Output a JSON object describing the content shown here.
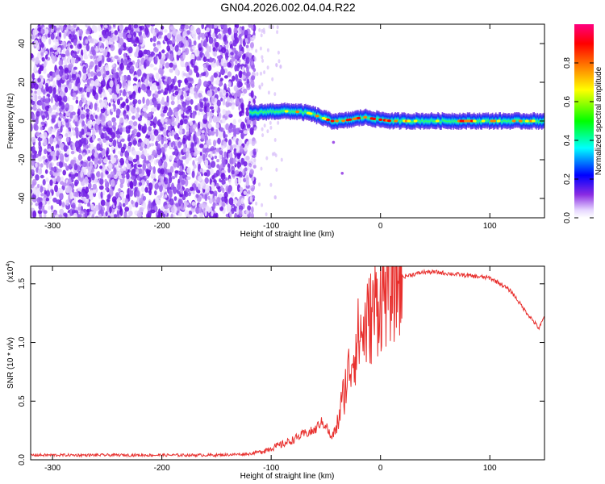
{
  "title": "GN04.2026.002.04.04.R22",
  "chart_data": [
    {
      "type": "heatmap",
      "title": "GN04.2026.002.04.04.R22",
      "xlabel": "Height of straight line (km)",
      "ylabel": "Frequency (Hz)",
      "xlim": [
        -320,
        150
      ],
      "ylim": [
        -50,
        50
      ],
      "xticks": [
        -300,
        -200,
        -100,
        0,
        100
      ],
      "yticks": [
        -40,
        -20,
        0,
        20,
        40
      ],
      "xtick_labels": [
        "-300",
        "-200",
        "-100",
        "0",
        "100"
      ],
      "ytick_labels": [
        "-40",
        "-20",
        "0",
        "20",
        "40"
      ],
      "colorbar": {
        "label": "Normalized spectral amplitude",
        "range": [
          0,
          1
        ],
        "ticks": [
          0.0,
          0.2,
          0.4,
          0.6,
          0.8
        ],
        "tick_labels": [
          "0.0",
          "0.2",
          "0.4",
          "0.6",
          "0.8"
        ],
        "colors": [
          "#ffffff",
          "#8a2be2",
          "#0000ff",
          "#00ffff",
          "#00ff00",
          "#ffff00",
          "#ff8000",
          "#ff0000",
          "#ff0080"
        ]
      },
      "noise_region": {
        "x_range": [
          -320,
          -115
        ],
        "freq_range": [
          -50,
          50
        ]
      },
      "ridge": {
        "description_points": [
          {
            "x": -120,
            "freq": 4,
            "amp": 0.5
          },
          {
            "x": -100,
            "freq": 5,
            "amp": 0.5
          },
          {
            "x": -80,
            "freq": 5,
            "amp": 0.55
          },
          {
            "x": -65,
            "freq": 4,
            "amp": 0.6
          },
          {
            "x": -55,
            "freq": 2,
            "amp": 0.7
          },
          {
            "x": -45,
            "freq": 0,
            "amp": 0.9
          },
          {
            "x": -35,
            "freq": 0,
            "amp": 0.8
          },
          {
            "x": -25,
            "freq": 1,
            "amp": 0.85
          },
          {
            "x": -15,
            "freq": 2,
            "amp": 0.9
          },
          {
            "x": -5,
            "freq": 1,
            "amp": 0.85
          },
          {
            "x": 10,
            "freq": 0,
            "amp": 0.8
          },
          {
            "x": 40,
            "freq": 0,
            "amp": 0.55
          },
          {
            "x": 80,
            "freq": 0,
            "amp": 0.85
          },
          {
            "x": 110,
            "freq": 0,
            "amp": 0.6
          },
          {
            "x": 150,
            "freq": 0,
            "amp": 0.6
          }
        ]
      }
    },
    {
      "type": "line",
      "xlabel": "Height of straight line (km)",
      "ylabel": "SNR (10 * v/v)",
      "y_multiplier_label": "(x10",
      "y_multiplier_exp": "4",
      "y_multiplier_close": ")",
      "xlim": [
        -320,
        150
      ],
      "ylim": [
        0,
        1.65
      ],
      "xticks": [
        -300,
        -200,
        -100,
        0,
        100
      ],
      "yticks": [
        0.0,
        0.5,
        1.0,
        1.5
      ],
      "xtick_labels": [
        "-300",
        "-200",
        "-100",
        "0",
        "100"
      ],
      "ytick_labels": [
        "0.0",
        "0.5",
        "1.0",
        "1.5"
      ],
      "color": "#e8302e",
      "series": [
        {
          "x": [
            -320,
            -250,
            -200,
            -150,
            -120,
            -110,
            -100,
            -90,
            -80,
            -70,
            -60,
            -55,
            -50,
            -45,
            -40,
            -35,
            -30,
            -25,
            -20,
            -15,
            -10,
            -5,
            0,
            5,
            10,
            15,
            20,
            30,
            40,
            50,
            60,
            70,
            80,
            90,
            100,
            110,
            120,
            130,
            140,
            145,
            150
          ],
          "y": [
            0.04,
            0.04,
            0.04,
            0.04,
            0.05,
            0.07,
            0.1,
            0.13,
            0.17,
            0.22,
            0.25,
            0.32,
            0.3,
            0.18,
            0.28,
            0.5,
            0.72,
            0.9,
            1.05,
            1.1,
            1.2,
            1.3,
            1.38,
            1.45,
            1.5,
            1.54,
            1.56,
            1.58,
            1.6,
            1.6,
            1.59,
            1.58,
            1.57,
            1.56,
            1.55,
            1.5,
            1.43,
            1.3,
            1.18,
            1.12,
            1.22
          ]
        }
      ]
    }
  ]
}
